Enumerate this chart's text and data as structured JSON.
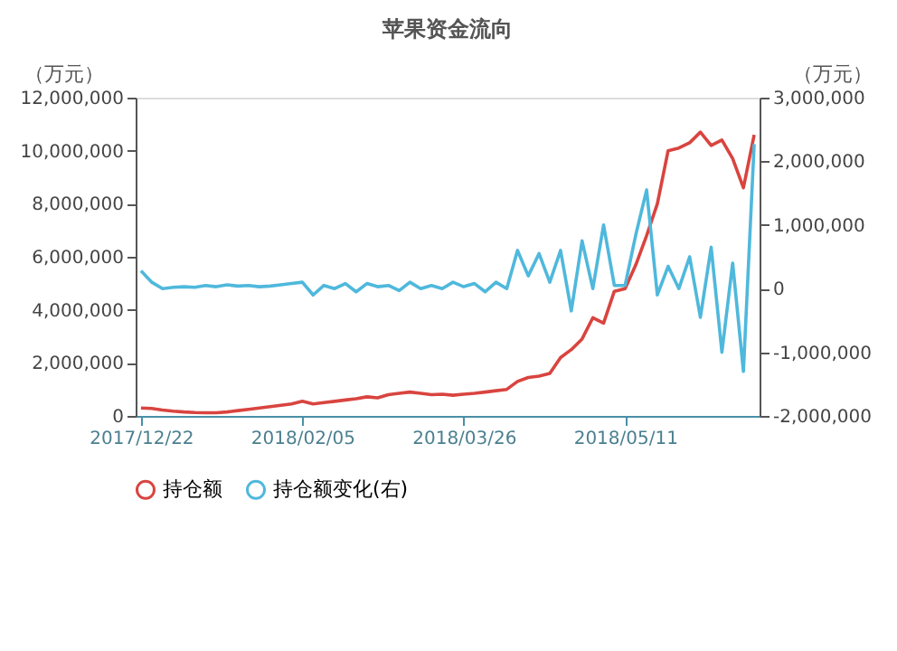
{
  "chart_data": {
    "type": "line",
    "title": "苹果资金流向",
    "ylabel": "（万元）",
    "y2label": "（万元）",
    "categories": [
      "2017/12/22",
      null,
      null,
      null,
      null,
      null,
      null,
      null,
      null,
      null,
      null,
      null,
      null,
      null,
      null,
      "2018/02/05",
      null,
      null,
      null,
      null,
      null,
      null,
      null,
      null,
      null,
      null,
      null,
      null,
      null,
      null,
      "2018/03/26",
      null,
      null,
      null,
      null,
      null,
      null,
      null,
      null,
      null,
      null,
      null,
      null,
      null,
      null,
      "2018/05/11",
      null,
      null,
      null,
      null,
      null,
      null,
      null,
      null,
      null,
      null,
      null,
      null
    ],
    "series": [
      {
        "name": "持仓额",
        "color": "#d9443f",
        "values": [
          300000,
          280000,
          220000,
          180000,
          150000,
          130000,
          120000,
          120000,
          150000,
          200000,
          250000,
          300000,
          350000,
          400000,
          450000,
          550000,
          450000,
          500000,
          550000,
          600000,
          650000,
          720000,
          680000,
          800000,
          850000,
          900000,
          850000,
          800000,
          820000,
          780000,
          820000,
          850000,
          900000,
          950000,
          1000000,
          1300000,
          1450000,
          1500000,
          1600000,
          2200000,
          2500000,
          2900000,
          3700000,
          3500000,
          4700000,
          4800000,
          5700000,
          6800000,
          8000000,
          10000000,
          10100000,
          10300000,
          10700000,
          10200000,
          10400000,
          9700000,
          8600000,
          10600000
        ]
      },
      {
        "name": "持仓额变化(右)",
        "color": "#4fb8dc",
        "axis": "y2",
        "values": [
          280000,
          100000,
          0,
          20000,
          30000,
          20000,
          50000,
          30000,
          60000,
          40000,
          50000,
          30000,
          40000,
          60000,
          80000,
          100000,
          -100000,
          50000,
          0,
          80000,
          -50000,
          80000,
          30000,
          50000,
          -30000,
          100000,
          0,
          50000,
          0,
          100000,
          30000,
          80000,
          -50000,
          100000,
          0,
          600000,
          200000,
          550000,
          100000,
          600000,
          -350000,
          750000,
          0,
          1000000,
          50000,
          50000,
          850000,
          1550000,
          -100000,
          350000,
          0,
          500000,
          -450000,
          650000,
          -1000000,
          400000,
          -1300000,
          2270000
        ]
      }
    ],
    "ylim": [
      0,
      12000000
    ],
    "yticks": [
      0,
      {
        "value": 2000000,
        "label": "2,000,000"
      },
      {
        "value": 4000000,
        "label": "4,000,000"
      },
      {
        "value": 6000000,
        "label": "6,000,000"
      },
      {
        "value": 8000000,
        "label": "8,000,000"
      },
      {
        "value": 10000000,
        "label": "10,000,000"
      },
      {
        "value": 12000000,
        "label": "12,000,000"
      }
    ],
    "y2lim": [
      -2000000,
      3000000
    ],
    "y2ticks": [
      {
        "value": -2000000,
        "label": "-2,000,000"
      },
      {
        "value": -1000000,
        "label": "-1,000,000"
      },
      0,
      {
        "value": 1000000,
        "label": "1,000,000"
      },
      {
        "value": 2000000,
        "label": "2,000,000"
      },
      {
        "value": 3000000,
        "label": "3,000,000"
      }
    ],
    "legend": "bottom",
    "grid": false,
    "marker": "none",
    "line_style": "solid"
  }
}
